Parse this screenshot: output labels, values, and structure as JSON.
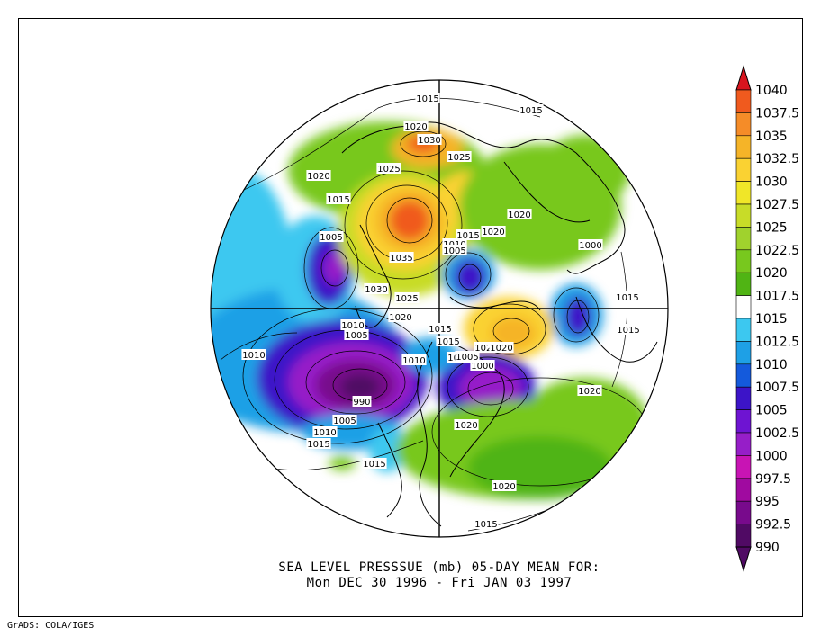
{
  "title_line1": "SEA LEVEL PRESSSUE (mb)   05-DAY MEAN FOR:",
  "title_line2": "Mon DEC 30 1996 - Fri JAN 03 1997",
  "credit": "GrADS: COLA/IGES",
  "colorbar": {
    "levels": [
      "1040",
      "1037.5",
      "1035",
      "1032.5",
      "1030",
      "1027.5",
      "1025",
      "1022.5",
      "1020",
      "1017.5",
      "1015",
      "1012.5",
      "1010",
      "1007.5",
      "1005",
      "1002.5",
      "1000",
      "997.5",
      "995",
      "992.5",
      "990"
    ],
    "colors": [
      "#d8141e",
      "#f05a1e",
      "#f58c28",
      "#f5b428",
      "#fad232",
      "#f0e628",
      "#c8dc28",
      "#a0d22d",
      "#78c81e",
      "#50b414",
      "#ffffff",
      "#3cc8f0",
      "#1ea0e6",
      "#145adc",
      "#3c14c8",
      "#6e14d2",
      "#961ec8",
      "#c814b4",
      "#a00aa0",
      "#780a8c",
      "#500a64"
    ]
  },
  "contour_labels": [
    "1015",
    "1015",
    "1020",
    "1030",
    "1025",
    "1025",
    "1020",
    "1015",
    "1035",
    "1030",
    "1025",
    "1020",
    "1010",
    "1005",
    "1015",
    "1020",
    "1020",
    "1005",
    "1015",
    "1010",
    "1005",
    "1000",
    "990",
    "1005",
    "1010",
    "1015",
    "1015",
    "1010",
    "1010",
    "1005",
    "1015",
    "1025",
    "1020",
    "1005",
    "1000",
    "1020",
    "1020",
    "1020",
    "1015",
    "1015",
    "1015"
  ]
}
